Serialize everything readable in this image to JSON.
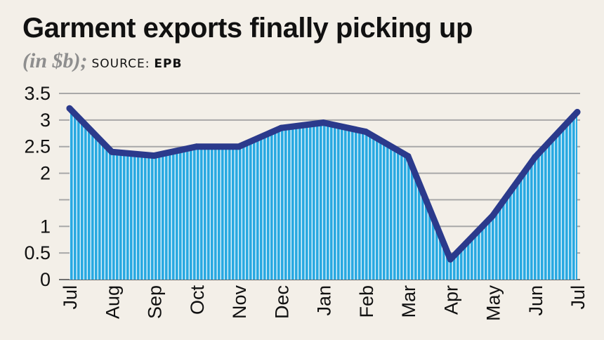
{
  "header": {
    "title": "Garment exports finally picking up",
    "unit": "(in $b);",
    "source_label": "SOURCE:",
    "source_name": "EPB"
  },
  "colors": {
    "background": "#f3efe8",
    "area_fill": "#29a9e1",
    "area_stripe": "#ffffff",
    "line": "#2b3a8c",
    "grid": "#a8a8a8"
  },
  "chart_data": {
    "type": "area",
    "categories": [
      "Jul",
      "Aug",
      "Sep",
      "Oct",
      "Nov",
      "Dec",
      "Jan",
      "Feb",
      "Mar",
      "Apr",
      "May",
      "Jun",
      "Jul"
    ],
    "values": [
      3.22,
      2.4,
      2.33,
      2.5,
      2.5,
      2.85,
      2.95,
      2.78,
      2.32,
      0.38,
      1.2,
      2.3,
      3.15
    ],
    "title": "Garment exports finally picking up",
    "xlabel": "",
    "ylabel": "",
    "ylim": [
      0,
      3.5
    ],
    "yticks": [
      0,
      0.5,
      1,
      1.5,
      2,
      2.5,
      3,
      3.5
    ],
    "ytick_labels": [
      "0",
      "0.5",
      "1",
      "",
      "2",
      "2.5",
      "3",
      "3.5"
    ],
    "grid": true,
    "legend": "none"
  }
}
